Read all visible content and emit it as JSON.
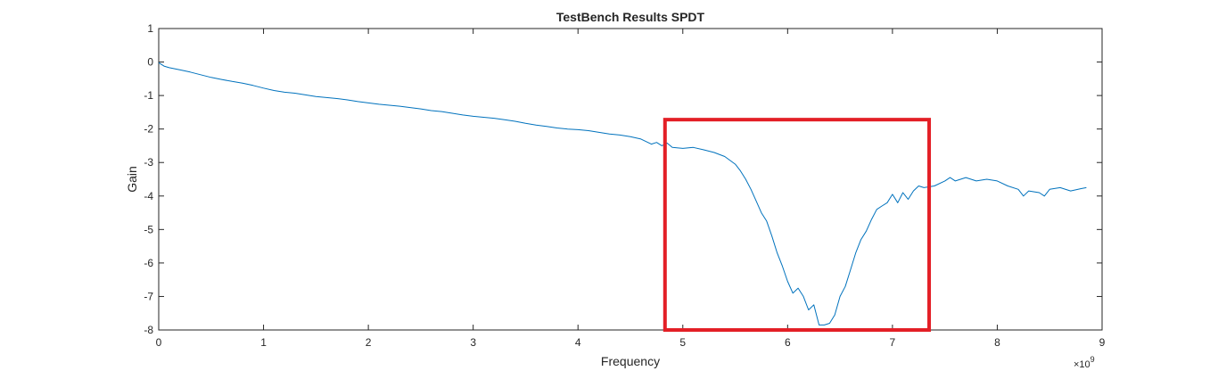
{
  "chart_data": {
    "type": "line",
    "title": "TestBench Results SPDT",
    "xlabel": "Frequency",
    "ylabel": "Gain",
    "x_exponent_label": "×10",
    "x_exponent_power": "9",
    "xlim": [
      0,
      9
    ],
    "ylim": [
      -8,
      1
    ],
    "xticks": [
      "0",
      "1",
      "2",
      "3",
      "4",
      "5",
      "6",
      "7",
      "8",
      "9"
    ],
    "yticks": [
      "-8",
      "-7",
      "-6",
      "-5",
      "-4",
      "-3",
      "-2",
      "-1",
      "0",
      "1"
    ],
    "grid": false,
    "series": [
      {
        "color": "#0072bd",
        "points": [
          [
            0.0,
            -0.02
          ],
          [
            0.05,
            -0.12
          ],
          [
            0.1,
            -0.17
          ],
          [
            0.2,
            -0.23
          ],
          [
            0.3,
            -0.3
          ],
          [
            0.4,
            -0.38
          ],
          [
            0.5,
            -0.46
          ],
          [
            0.6,
            -0.52
          ],
          [
            0.7,
            -0.58
          ],
          [
            0.8,
            -0.63
          ],
          [
            0.9,
            -0.7
          ],
          [
            1.0,
            -0.78
          ],
          [
            1.1,
            -0.85
          ],
          [
            1.2,
            -0.9
          ],
          [
            1.3,
            -0.93
          ],
          [
            1.4,
            -0.98
          ],
          [
            1.5,
            -1.03
          ],
          [
            1.6,
            -1.06
          ],
          [
            1.7,
            -1.09
          ],
          [
            1.8,
            -1.13
          ],
          [
            1.9,
            -1.18
          ],
          [
            2.0,
            -1.22
          ],
          [
            2.1,
            -1.26
          ],
          [
            2.2,
            -1.29
          ],
          [
            2.3,
            -1.32
          ],
          [
            2.4,
            -1.36
          ],
          [
            2.5,
            -1.4
          ],
          [
            2.6,
            -1.45
          ],
          [
            2.7,
            -1.48
          ],
          [
            2.8,
            -1.53
          ],
          [
            2.9,
            -1.58
          ],
          [
            3.0,
            -1.62
          ],
          [
            3.1,
            -1.65
          ],
          [
            3.2,
            -1.68
          ],
          [
            3.3,
            -1.72
          ],
          [
            3.4,
            -1.77
          ],
          [
            3.5,
            -1.83
          ],
          [
            3.6,
            -1.88
          ],
          [
            3.7,
            -1.92
          ],
          [
            3.8,
            -1.97
          ],
          [
            3.9,
            -2.0
          ],
          [
            4.0,
            -2.02
          ],
          [
            4.1,
            -2.05
          ],
          [
            4.2,
            -2.1
          ],
          [
            4.3,
            -2.15
          ],
          [
            4.4,
            -2.18
          ],
          [
            4.5,
            -2.23
          ],
          [
            4.6,
            -2.3
          ],
          [
            4.7,
            -2.45
          ],
          [
            4.75,
            -2.4
          ],
          [
            4.8,
            -2.5
          ],
          [
            4.85,
            -2.42
          ],
          [
            4.9,
            -2.55
          ],
          [
            5.0,
            -2.58
          ],
          [
            5.1,
            -2.55
          ],
          [
            5.2,
            -2.62
          ],
          [
            5.3,
            -2.7
          ],
          [
            5.4,
            -2.82
          ],
          [
            5.5,
            -3.05
          ],
          [
            5.55,
            -3.25
          ],
          [
            5.6,
            -3.5
          ],
          [
            5.65,
            -3.8
          ],
          [
            5.7,
            -4.15
          ],
          [
            5.75,
            -4.5
          ],
          [
            5.8,
            -4.75
          ],
          [
            5.85,
            -5.2
          ],
          [
            5.9,
            -5.7
          ],
          [
            5.95,
            -6.1
          ],
          [
            6.0,
            -6.55
          ],
          [
            6.05,
            -6.9
          ],
          [
            6.1,
            -6.75
          ],
          [
            6.15,
            -7.0
          ],
          [
            6.2,
            -7.4
          ],
          [
            6.25,
            -7.25
          ],
          [
            6.3,
            -7.85
          ],
          [
            6.35,
            -7.85
          ],
          [
            6.4,
            -7.8
          ],
          [
            6.45,
            -7.55
          ],
          [
            6.5,
            -7.0
          ],
          [
            6.55,
            -6.7
          ],
          [
            6.6,
            -6.2
          ],
          [
            6.65,
            -5.7
          ],
          [
            6.7,
            -5.3
          ],
          [
            6.75,
            -5.05
          ],
          [
            6.8,
            -4.7
          ],
          [
            6.85,
            -4.4
          ],
          [
            6.9,
            -4.3
          ],
          [
            6.95,
            -4.2
          ],
          [
            7.0,
            -3.95
          ],
          [
            7.05,
            -4.2
          ],
          [
            7.1,
            -3.9
          ],
          [
            7.15,
            -4.1
          ],
          [
            7.2,
            -3.85
          ],
          [
            7.25,
            -3.7
          ],
          [
            7.3,
            -3.75
          ],
          [
            7.4,
            -3.7
          ],
          [
            7.5,
            -3.55
          ],
          [
            7.55,
            -3.45
          ],
          [
            7.6,
            -3.55
          ],
          [
            7.7,
            -3.45
          ],
          [
            7.8,
            -3.55
          ],
          [
            7.9,
            -3.5
          ],
          [
            8.0,
            -3.55
          ],
          [
            8.1,
            -3.7
          ],
          [
            8.2,
            -3.8
          ],
          [
            8.25,
            -4.0
          ],
          [
            8.3,
            -3.85
          ],
          [
            8.4,
            -3.9
          ],
          [
            8.45,
            -4.0
          ],
          [
            8.5,
            -3.8
          ],
          [
            8.6,
            -3.75
          ],
          [
            8.7,
            -3.85
          ],
          [
            8.8,
            -3.78
          ],
          [
            8.85,
            -3.75
          ]
        ]
      }
    ],
    "highlight_box": {
      "x_range": [
        4.83,
        7.35
      ],
      "y_range": [
        -8.0,
        -1.72
      ],
      "color": "#e31f26"
    }
  }
}
